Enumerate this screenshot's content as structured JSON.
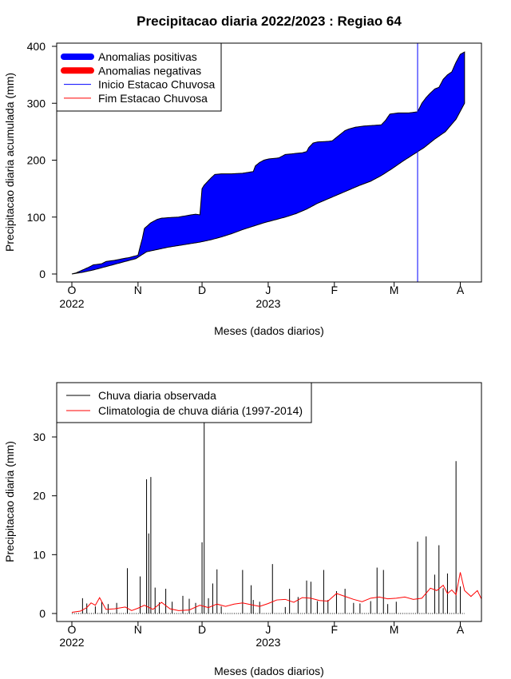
{
  "title": "Precipitacao diaria 2022/2023 : Regiao 64",
  "chart_data": [
    {
      "type": "area",
      "ylabel": "Precipitacao diaria acumulada (mm)",
      "xlabel": "Meses (dados diarios)",
      "ylim": [
        0,
        400
      ],
      "yticks": [
        0,
        100,
        200,
        300,
        400
      ],
      "xlim_days": [
        0,
        192
      ],
      "xticks": [
        {
          "day": 0,
          "label": "O"
        },
        {
          "day": 31,
          "label": "N"
        },
        {
          "day": 61,
          "label": "D"
        },
        {
          "day": 92,
          "label": "J"
        },
        {
          "day": 123,
          "label": "F"
        },
        {
          "day": 151,
          "label": "M"
        },
        {
          "day": 182,
          "label": "A"
        }
      ],
      "year_labels": [
        {
          "day": 0,
          "label": "2022"
        },
        {
          "day": 92,
          "label": "2023"
        }
      ],
      "legend": {
        "placement": "top-left",
        "entries": [
          {
            "label": "Anomalias positivas",
            "color": "#0000ff",
            "kind": "thick"
          },
          {
            "label": "Anomalias negativas",
            "color": "#ff0000",
            "kind": "thick"
          },
          {
            "label": "Inicio Estacao Chuvosa",
            "color": "#0000ff",
            "kind": "thin"
          },
          {
            "label": "Fim Estacao Chuvosa",
            "color": "#ff0000",
            "kind": "thin"
          }
        ]
      },
      "rainy_season_start_day": 162,
      "series": [
        {
          "name": "observed_cumulative",
          "days": [
            0,
            2,
            5,
            8,
            10,
            14,
            16,
            20,
            24,
            27,
            29,
            31,
            32,
            33,
            34,
            37,
            40,
            42,
            45,
            50,
            53,
            56,
            58,
            60,
            61,
            62,
            63,
            65,
            67,
            70,
            75,
            80,
            85,
            86,
            88,
            90,
            92,
            97,
            100,
            103,
            105,
            108,
            110,
            111,
            113,
            115,
            120,
            122,
            124,
            126,
            128,
            130,
            133,
            137,
            141,
            145,
            147,
            149,
            151,
            153,
            158,
            160,
            162,
            164,
            166,
            168,
            170,
            172,
            174,
            176,
            178,
            180,
            182,
            184
          ],
          "values": [
            0,
            2,
            7,
            12,
            16,
            18,
            22,
            24,
            27,
            29,
            31,
            33,
            48,
            62,
            80,
            90,
            96,
            98,
            99,
            100,
            102,
            104,
            105,
            104,
            150,
            156,
            160,
            168,
            175,
            176,
            176,
            177,
            180,
            190,
            196,
            200,
            202,
            204,
            210,
            211,
            212,
            213,
            215,
            222,
            230,
            232,
            233,
            234,
            240,
            246,
            252,
            255,
            258,
            260,
            261,
            262,
            270,
            281,
            282,
            283,
            283,
            284,
            285,
            300,
            310,
            318,
            325,
            328,
            342,
            350,
            355,
            372,
            386,
            390
          ]
        },
        {
          "name": "climatology_cumulative",
          "days": [
            0,
            5,
            10,
            15,
            20,
            25,
            30,
            35,
            40,
            45,
            50,
            55,
            60,
            65,
            70,
            75,
            80,
            85,
            90,
            95,
            100,
            105,
            110,
            115,
            120,
            125,
            130,
            135,
            140,
            145,
            150,
            155,
            160,
            165,
            170,
            175,
            180,
            184
          ],
          "values": [
            0,
            3,
            7,
            12,
            17,
            22,
            27,
            39,
            43,
            47,
            50,
            53,
            56,
            60,
            65,
            71,
            78,
            84,
            90,
            95,
            100,
            106,
            114,
            124,
            132,
            140,
            148,
            156,
            163,
            173,
            185,
            198,
            210,
            222,
            237,
            250,
            272,
            300
          ]
        }
      ]
    },
    {
      "type": "bar",
      "ylabel": "Precipitacao diaria (mm)",
      "xlabel": "Meses (dados diarios)",
      "ylim": [
        -1.5,
        39
      ],
      "yticks": [
        0,
        10,
        20,
        30
      ],
      "xlim_days": [
        -5,
        192
      ],
      "xticks": [
        {
          "day": 0,
          "label": "O"
        },
        {
          "day": 31,
          "label": "N"
        },
        {
          "day": 61,
          "label": "D"
        },
        {
          "day": 92,
          "label": "J"
        },
        {
          "day": 123,
          "label": "F"
        },
        {
          "day": 151,
          "label": "M"
        },
        {
          "day": 182,
          "label": "A"
        }
      ],
      "year_labels": [
        {
          "day": 0,
          "label": "2022"
        },
        {
          "day": 92,
          "label": "2023"
        }
      ],
      "legend": {
        "placement": "top-left",
        "entries": [
          {
            "label": "Chuva diaria observada",
            "color": "#000000"
          },
          {
            "label": "Climatologia de chuva diária (1997-2014)",
            "color": "#ff0000"
          }
        ]
      },
      "series": [
        {
          "name": "observed_daily",
          "days": [
            5,
            7,
            11,
            14,
            17,
            21,
            26,
            32,
            35,
            36,
            37,
            39,
            41,
            44,
            47,
            52,
            55,
            58,
            61,
            62,
            64,
            66,
            68,
            70,
            80,
            84,
            85,
            88,
            94,
            100,
            102,
            106,
            110,
            112,
            115,
            118,
            120,
            124,
            128,
            132,
            135,
            140,
            143,
            146,
            148,
            152,
            162,
            166,
            170,
            172,
            174,
            176,
            180,
            182
          ],
          "values": [
            2.6,
            1.7,
            1.2,
            2.0,
            1.6,
            1.8,
            7.7,
            6.3,
            22.8,
            13.6,
            23.2,
            4.4,
            1.9,
            4.2,
            2.0,
            3.0,
            2.5,
            1.8,
            12.1,
            34.5,
            2.6,
            5.1,
            7.5,
            1.2,
            7.4,
            4.8,
            2.3,
            2.0,
            8.4,
            1.1,
            4.2,
            2.8,
            5.6,
            5.4,
            2.1,
            7.4,
            2.3,
            3.8,
            4.2,
            1.8,
            1.7,
            2.1,
            7.8,
            7.4,
            1.6,
            2.0,
            12.2,
            13.1,
            6.6,
            11.6,
            4.3,
            6.8,
            25.9,
            4.6
          ]
        },
        {
          "name": "climatology_daily",
          "days": [
            0,
            4,
            7,
            9,
            11,
            13,
            16,
            20,
            25,
            28,
            31,
            34,
            38,
            42,
            46,
            50,
            55,
            60,
            64,
            68,
            72,
            76,
            80,
            84,
            88,
            92,
            96,
            100,
            104,
            108,
            112,
            116,
            120,
            124,
            128,
            132,
            136,
            140,
            144,
            148,
            152,
            156,
            160,
            164,
            168,
            171,
            174,
            176,
            178,
            180,
            182,
            184,
            187,
            190,
            192
          ],
          "values": [
            0.2,
            0.4,
            1.0,
            1.8,
            1.4,
            2.7,
            0.7,
            0.8,
            1.1,
            0.5,
            0.9,
            1.4,
            0.7,
            1.9,
            0.8,
            0.5,
            0.6,
            1.4,
            1.0,
            1.6,
            1.2,
            1.6,
            1.8,
            1.5,
            1.2,
            1.7,
            2.3,
            2.4,
            1.9,
            2.7,
            2.6,
            2.2,
            2.1,
            3.4,
            2.9,
            2.4,
            2.0,
            2.6,
            2.8,
            2.5,
            2.6,
            2.8,
            2.4,
            2.6,
            4.3,
            3.9,
            4.8,
            3.4,
            4.0,
            3.2,
            7.0,
            3.9,
            2.9,
            3.9,
            2.4
          ]
        }
      ]
    }
  ]
}
